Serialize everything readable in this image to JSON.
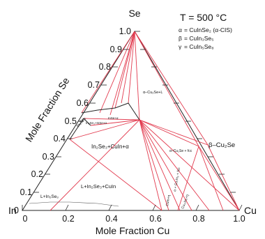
{
  "title": "T = 500 °C",
  "vertices": {
    "top": "Se",
    "left": "In",
    "right": "Cu"
  },
  "axes": {
    "left_title": "Mole Fraction Se",
    "bottom_title": "Mole Fraction Cu"
  },
  "left_ticks": [
    "0",
    "0.1",
    "0.2",
    "0.3",
    "0.4",
    "0.5",
    "0.6",
    "0.7",
    "0.8",
    "0.9",
    "1.0"
  ],
  "bottom_ticks": [
    "0",
    "0.2",
    "0.4",
    "0.6",
    "0.8",
    "1.0"
  ],
  "legend": [
    {
      "symbol": "α",
      "text": "= CuInSe₂ (α-CIS)"
    },
    {
      "symbol": "β",
      "text": "= CuIn₃Se₅"
    },
    {
      "symbol": "γ",
      "text": "= CuIn₅Se₈"
    }
  ],
  "regions": {
    "in2se3_cuin_alpha": "In₂Se₃+CuIn+α",
    "l_in2se3_cuin": "L+In₂Se₃+CuIn",
    "l_in2se3": "L+In₂Se₃",
    "beta_cu2se": "β–Cu₂Se",
    "alpha_cu2se_l": "α–Cu₂Se+L",
    "alpha_cu2se_fcc": "α–Cu₂Se + fcc",
    "alpha_cu7in3_fcc": "α + Cu₇In₃ + fcc",
    "in2se3_side": "In₂Se₃",
    "in2se3_inse_alpha": "In₂Se₃+InSe+α",
    "inse_alpha": "InSe+α",
    "cuin_eta": "CuIn+η",
    "cu11in9_eta": "Cu₁₁In₉+η"
  }
}
